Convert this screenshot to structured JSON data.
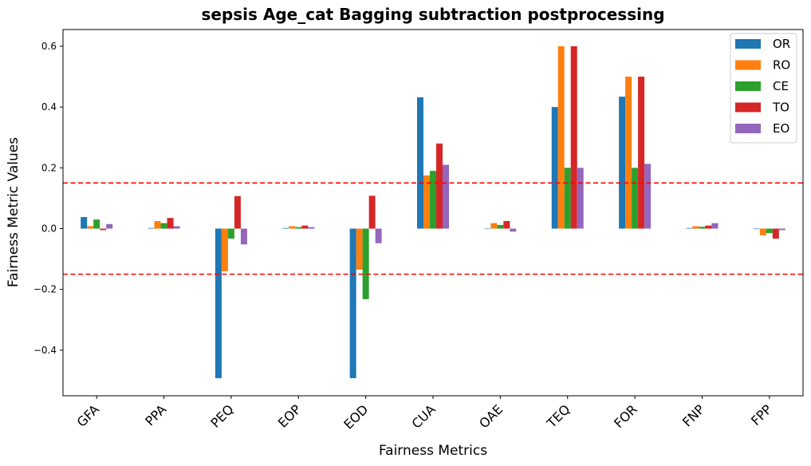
{
  "chart_data": {
    "type": "bar",
    "title": "sepsis Age_cat Bagging subtraction postprocessing",
    "xlabel": "Fairness Metrics",
    "ylabel": "Fairness Metric Values",
    "categories": [
      "GFA",
      "PPA",
      "PEQ",
      "EOP",
      "EOD",
      "CUA",
      "OAE",
      "TEQ",
      "FOR",
      "FNP",
      "FPP"
    ],
    "series": [
      {
        "name": "OR",
        "color": "#1f77b4",
        "values": [
          0.038,
          0.002,
          -0.492,
          0.002,
          -0.492,
          0.432,
          0.0,
          0.4,
          0.434,
          0.002,
          0.0
        ]
      },
      {
        "name": "RO",
        "color": "#ff7f0e",
        "values": [
          0.008,
          0.025,
          -0.14,
          0.008,
          -0.135,
          0.175,
          0.018,
          0.6,
          0.5,
          0.008,
          -0.022
        ]
      },
      {
        "name": "CE",
        "color": "#2ca02c",
        "values": [
          0.03,
          0.018,
          -0.033,
          0.005,
          -0.232,
          0.19,
          0.012,
          0.2,
          0.2,
          0.006,
          -0.015
        ]
      },
      {
        "name": "TO",
        "color": "#d62728",
        "values": [
          -0.005,
          0.035,
          0.107,
          0.01,
          0.108,
          0.28,
          0.025,
          0.6,
          0.5,
          0.01,
          -0.033
        ]
      },
      {
        "name": "EO",
        "color": "#9467bd",
        "values": [
          0.015,
          0.008,
          -0.052,
          0.005,
          -0.048,
          0.21,
          -0.01,
          0.2,
          0.213,
          0.018,
          -0.005
        ]
      }
    ],
    "yticks": [
      -0.4,
      -0.2,
      0.0,
      0.2,
      0.4,
      0.6
    ],
    "ytick_labels": [
      "−0.4",
      "−0.2",
      "0.0",
      "0.2",
      "0.4",
      "0.6"
    ],
    "ylim": [
      -0.55,
      0.655
    ],
    "reference_lines": [
      {
        "value": 0.15,
        "color": "#ff0000",
        "style": "dashed"
      },
      {
        "value": -0.15,
        "color": "#ff0000",
        "style": "dashed"
      }
    ],
    "grid": false,
    "legend_position": "top-right"
  }
}
